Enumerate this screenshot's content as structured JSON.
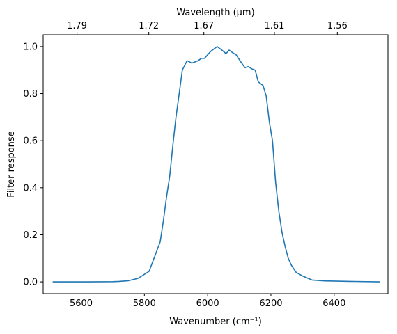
{
  "chart_data": {
    "type": "line",
    "title": "",
    "xlabel": "Wavenumber (cm⁻¹)",
    "ylabel": "Filter response",
    "top_xlabel": "Wavelength (μm)",
    "xlim": [
      5480,
      6570
    ],
    "ylim": [
      -0.05,
      1.05
    ],
    "grid": false,
    "line_color": "#1f77b4",
    "x_ticks": [
      {
        "value": 5600,
        "label": "5600"
      },
      {
        "value": 5800,
        "label": "5800"
      },
      {
        "value": 6000,
        "label": "6000"
      },
      {
        "value": 6200,
        "label": "6200"
      },
      {
        "value": 6400,
        "label": "6400"
      }
    ],
    "y_ticks": [
      {
        "value": 0.0,
        "label": "0.0"
      },
      {
        "value": 0.2,
        "label": "0.2"
      },
      {
        "value": 0.4,
        "label": "0.4"
      },
      {
        "value": 0.6,
        "label": "0.6"
      },
      {
        "value": 0.8,
        "label": "0.8"
      },
      {
        "value": 1.0,
        "label": "1.0"
      }
    ],
    "top_ticks": [
      {
        "value": 5587,
        "label": "1.79"
      },
      {
        "value": 5814,
        "label": "1.72"
      },
      {
        "value": 5988,
        "label": "1.67"
      },
      {
        "value": 6211,
        "label": "1.61"
      },
      {
        "value": 6410,
        "label": "1.56"
      }
    ],
    "series": [
      {
        "x": [
          5510,
          5600,
          5700,
          5720,
          5750,
          5780,
          5815,
          5850,
          5860,
          5870,
          5880,
          5890,
          5900,
          5910,
          5920,
          5935,
          5950,
          5970,
          5980,
          5990,
          6010,
          6030,
          6045,
          6058,
          6068,
          6078,
          6090,
          6105,
          6118,
          6128,
          6140,
          6150,
          6160,
          6175,
          6185,
          6195,
          6205,
          6215,
          6225,
          6235,
          6245,
          6255,
          6265,
          6280,
          6300,
          6330,
          6370,
          6450,
          6545
        ],
        "y": [
          0.0,
          0.0,
          0.001,
          0.002,
          0.005,
          0.015,
          0.045,
          0.17,
          0.26,
          0.36,
          0.45,
          0.58,
          0.7,
          0.8,
          0.9,
          0.94,
          0.93,
          0.94,
          0.95,
          0.95,
          0.98,
          1.0,
          0.985,
          0.97,
          0.985,
          0.975,
          0.965,
          0.935,
          0.91,
          0.915,
          0.905,
          0.9,
          0.85,
          0.835,
          0.79,
          0.68,
          0.6,
          0.42,
          0.3,
          0.21,
          0.15,
          0.1,
          0.07,
          0.04,
          0.025,
          0.008,
          0.004,
          0.002,
          0.0
        ]
      }
    ]
  }
}
